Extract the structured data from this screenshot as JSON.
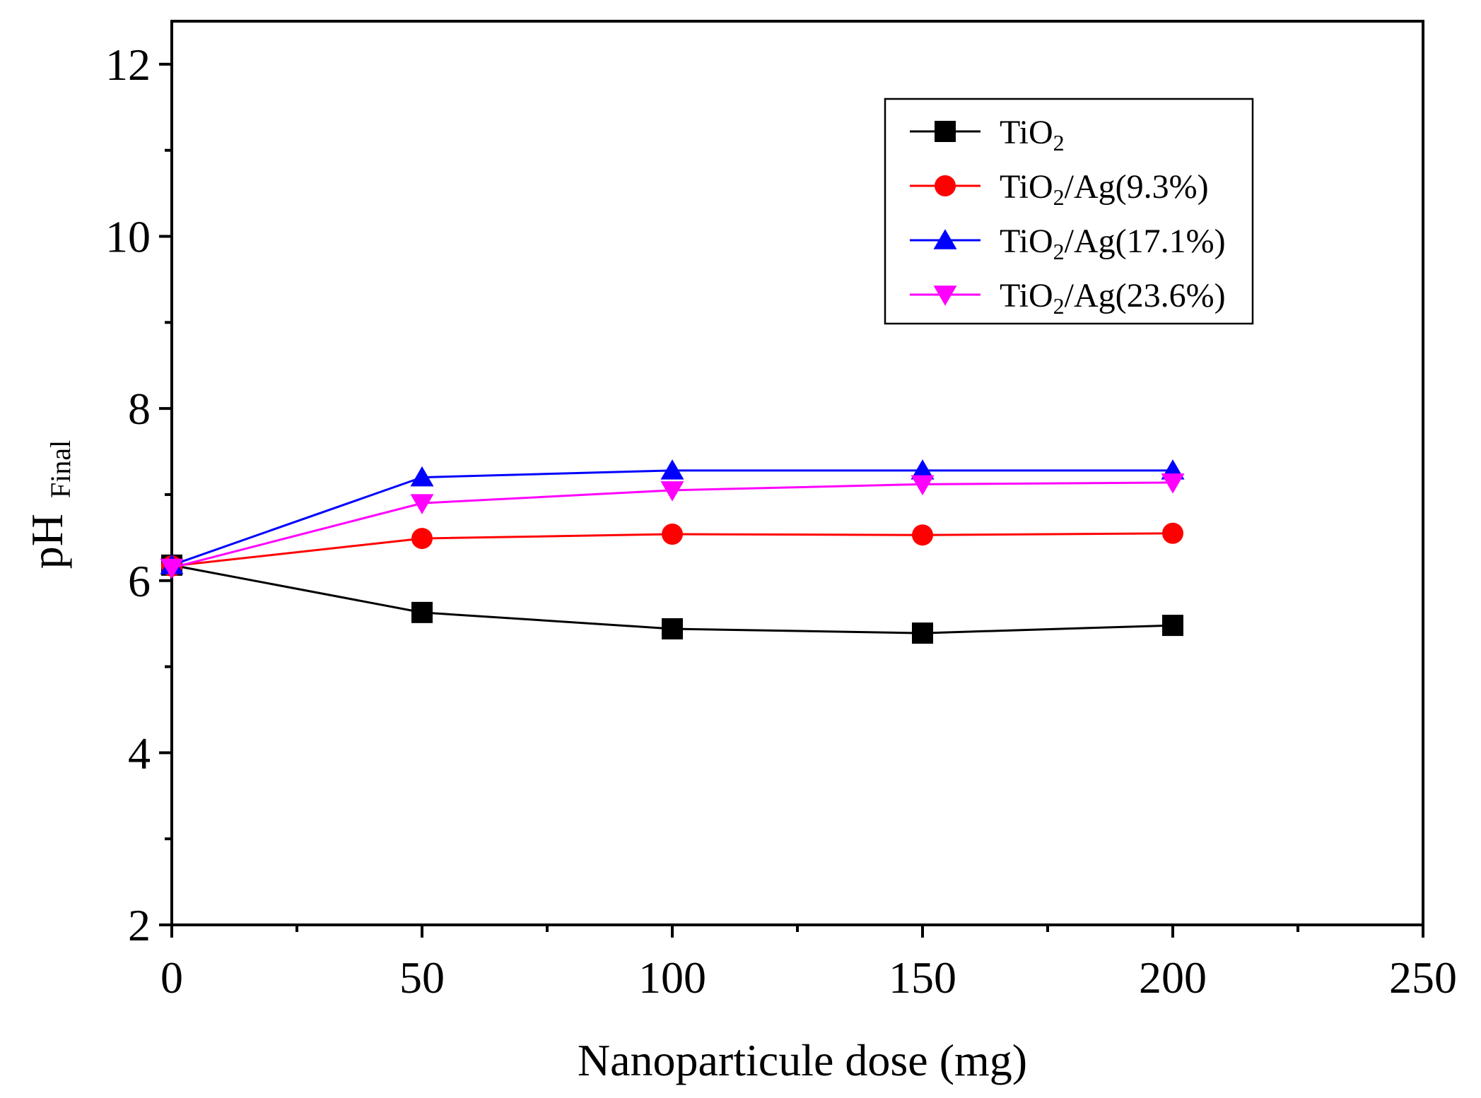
{
  "chart_data": {
    "type": "line",
    "title": "",
    "xlabel": "Nanoparticule dose (mg)",
    "ylabel": {
      "main": "pH",
      "sub": "Final"
    },
    "xlim": [
      0,
      250
    ],
    "ylim": [
      2,
      12.5
    ],
    "x_ticks": [
      0,
      50,
      100,
      150,
      200,
      250
    ],
    "x_tick_labels": [
      "0",
      "50",
      "100",
      "150",
      "200",
      "250"
    ],
    "y_ticks": [
      2,
      4,
      6,
      8,
      10,
      12
    ],
    "y_tick_labels": [
      "2",
      "4",
      "6",
      "8",
      "10",
      "12"
    ],
    "grid": false,
    "legend_position": "top-right",
    "x": [
      0,
      50,
      100,
      150,
      200
    ],
    "series": [
      {
        "name": "TiO2",
        "label_main": "TiO",
        "label_sub": "2",
        "label_rest": "",
        "color": "#000000",
        "marker": "square",
        "values": [
          6.18,
          5.63,
          5.44,
          5.39,
          5.48
        ]
      },
      {
        "name": "TiO2/Ag(9.3%)",
        "label_main": "TiO",
        "label_sub": "2",
        "label_rest": "/Ag(9.3%)",
        "color": "#ff0000",
        "marker": "circle",
        "values": [
          6.17,
          6.49,
          6.54,
          6.53,
          6.55
        ]
      },
      {
        "name": "TiO2/Ag(17.1%)",
        "label_main": "TiO",
        "label_sub": "2",
        "label_rest": "/Ag(17.1%)",
        "color": "#0000ff",
        "marker": "triangle-up",
        "values": [
          6.18,
          7.2,
          7.28,
          7.28,
          7.28
        ]
      },
      {
        "name": "TiO2/Ag(23.6%)",
        "label_main": "TiO",
        "label_sub": "2",
        "label_rest": "/Ag(23.6%)",
        "color": "#ff00ff",
        "marker": "triangle-down",
        "values": [
          6.15,
          6.9,
          7.05,
          7.12,
          7.14
        ]
      }
    ]
  }
}
